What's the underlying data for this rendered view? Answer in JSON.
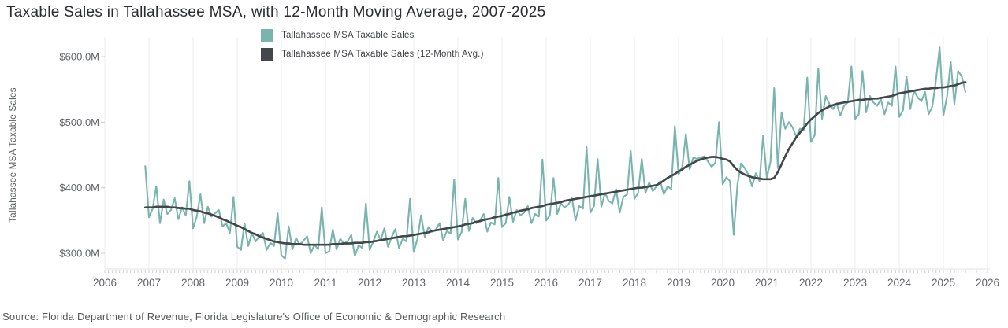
{
  "title": "Taxable Sales in Tallahassee MSA, with 12-Month Moving Average, 2007-2025",
  "source": "Source: Florida Department of Revenue, Florida Legislature's Office of Economic & Demographic Research",
  "y_axis": {
    "title": "Tallahassee MSA Taxable Sales"
  },
  "legend": {
    "items": [
      {
        "label": "Tallahassee MSA Taxable Sales",
        "color": "#79b5ad"
      },
      {
        "label": "Tallahassee MSA Taxable Sales (12-Month Avg.)",
        "color": "#43474c"
      }
    ]
  },
  "colors": {
    "sales_line": "#79b5ad",
    "avg_line": "#43474c",
    "gridline": "#ededed",
    "axis_line": "#e2e2e2",
    "tick": "#cfcfcf",
    "axis_text": "#5f6368"
  },
  "chart_data": {
    "type": "line",
    "title": "Taxable Sales in Tallahassee MSA, with 12-Month Moving Average, 2007-2025",
    "xlabel": "",
    "ylabel": "Tallahassee MSA Taxable Sales",
    "units": "millions of USD",
    "x_start_year": 2006,
    "x_start_month": 12,
    "x_interval": "monthly",
    "xlim": [
      2006,
      2026.2
    ],
    "ylim": [
      280,
      625
    ],
    "grid": "vertical yearly gridlines only",
    "legend_position": "top-center",
    "x_ticks": [
      2006,
      2007,
      2008,
      2009,
      2010,
      2011,
      2012,
      2013,
      2014,
      2015,
      2016,
      2017,
      2018,
      2019,
      2020,
      2021,
      2022,
      2023,
      2024,
      2025,
      2026
    ],
    "x_tick_labels": [
      "2006",
      "2007",
      "2008",
      "2009",
      "2010",
      "2011",
      "2012",
      "2013",
      "2014",
      "2015",
      "2016",
      "2017",
      "2018",
      "2019",
      "2020",
      "2021",
      "2022",
      "2023",
      "2024",
      "2025",
      "2026"
    ],
    "y_ticks": [
      300,
      400,
      500,
      600
    ],
    "y_tick_labels": [
      "$300.0M",
      "$400.0M",
      "$500.0M",
      "$600.0M"
    ],
    "series": [
      {
        "name": "Tallahassee MSA Taxable Sales",
        "color": "#79b5ad",
        "values_musd": [
          433,
          355,
          368,
          402,
          346,
          382,
          360,
          366,
          384,
          352,
          370,
          358,
          410,
          338,
          356,
          390,
          346,
          371,
          356,
          361,
          366,
          341,
          346,
          331,
          386,
          310,
          305,
          346,
          311,
          331,
          318,
          326,
          331,
          305,
          316,
          311,
          361,
          297,
          292,
          341,
          306,
          323,
          313,
          319,
          326,
          300,
          313,
          306,
          370,
          300,
          303,
          336,
          306,
          322,
          315,
          318,
          328,
          296,
          312,
          308,
          376,
          305,
          318,
          333,
          320,
          338,
          310,
          325,
          337,
          308,
          322,
          318,
          383,
          302,
          322,
          358,
          325,
          340,
          333,
          336,
          346,
          320,
          334,
          330,
          413,
          321,
          332,
          383,
          334,
          354,
          346,
          350,
          360,
          333,
          347,
          344,
          415,
          340,
          346,
          386,
          348,
          366,
          358,
          362,
          372,
          346,
          360,
          356,
          443,
          350,
          358,
          415,
          360,
          376,
          370,
          374,
          384,
          350,
          372,
          368,
          462,
          362,
          372,
          444,
          371,
          392,
          380,
          376,
          398,
          362,
          386,
          390,
          456,
          383,
          392,
          444,
          392,
          408,
          395,
          402,
          410,
          390,
          402,
          398,
          494,
          420,
          432,
          482,
          428,
          446,
          444,
          446,
          448,
          440,
          432,
          438,
          500,
          405,
          416,
          410,
          328,
          405,
          437,
          430,
          420,
          402,
          422,
          410,
          480,
          415,
          440,
          552,
          430,
          515,
          490,
          500,
          492,
          478,
          490,
          488,
          568,
          470,
          480,
          582,
          505,
          540,
          528,
          520,
          528,
          510,
          525,
          530,
          585,
          505,
          512,
          578,
          515,
          540,
          530,
          525,
          535,
          512,
          530,
          525,
          585,
          508,
          518,
          570,
          520,
          548,
          538,
          532,
          546,
          512,
          524,
          565,
          614,
          510,
          540,
          592,
          528,
          578,
          570,
          546
        ]
      },
      {
        "name": "Tallahassee MSA Taxable Sales (12-Month Avg.)",
        "color": "#43474c",
        "values_musd": [
          370,
          370,
          370,
          371,
          371,
          371,
          371,
          370,
          370,
          369,
          369,
          368,
          368,
          366,
          365,
          364,
          362,
          361,
          359,
          357,
          355,
          352,
          350,
          347,
          345,
          342,
          340,
          337,
          334,
          331,
          329,
          326,
          324,
          322,
          320,
          318,
          317,
          316,
          315,
          315,
          314,
          314,
          314,
          313,
          313,
          313,
          313,
          313,
          313,
          313,
          313,
          314,
          314,
          314,
          315,
          315,
          315,
          316,
          316,
          316,
          317,
          317,
          318,
          319,
          320,
          321,
          322,
          323,
          324,
          325,
          326,
          326,
          327,
          328,
          329,
          330,
          331,
          332,
          334,
          335,
          336,
          337,
          338,
          339,
          340,
          341,
          342,
          344,
          345,
          346,
          348,
          349,
          351,
          352,
          353,
          355,
          356,
          357,
          359,
          360,
          362,
          363,
          365,
          366,
          367,
          369,
          370,
          371,
          372,
          374,
          375,
          376,
          377,
          378,
          380,
          381,
          382,
          383,
          384,
          385,
          386,
          387,
          388,
          389,
          390,
          391,
          392,
          393,
          394,
          395,
          396,
          397,
          398,
          399,
          400,
          400,
          401,
          402,
          403,
          404,
          407,
          411,
          415,
          418,
          421,
          425,
          428,
          432,
          435,
          438,
          441,
          443,
          445,
          446,
          447,
          447,
          446,
          444,
          443,
          440,
          433,
          427,
          423,
          420,
          418,
          416,
          415,
          414,
          413,
          413,
          413,
          415,
          424,
          436,
          448,
          459,
          468,
          477,
          484,
          491,
          498,
          504,
          509,
          514,
          518,
          521,
          524,
          526,
          528,
          529,
          530,
          531,
          532,
          533,
          534,
          534,
          535,
          535,
          536,
          536,
          537,
          538,
          539,
          540,
          542,
          544,
          545,
          546,
          547,
          548,
          549,
          550,
          551,
          551,
          552,
          552,
          553,
          553,
          554,
          555,
          556,
          558,
          560,
          561
        ]
      }
    ]
  }
}
